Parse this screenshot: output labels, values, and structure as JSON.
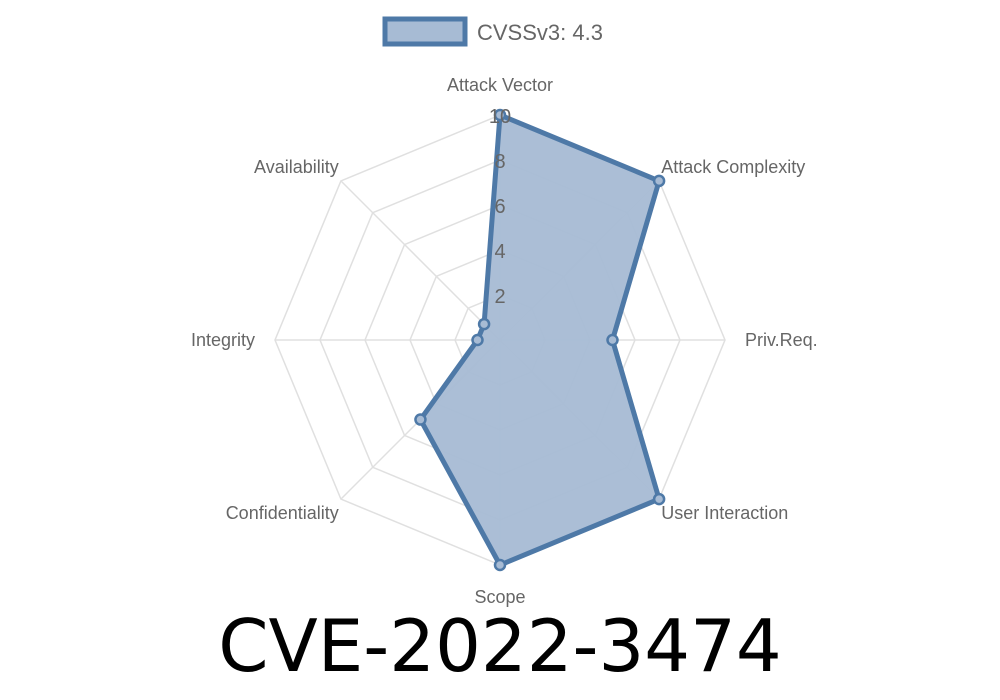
{
  "chart_data": {
    "type": "radar",
    "categories": [
      "Attack Vector",
      "Attack Complexity",
      "Priv.Req.",
      "User Interaction",
      "Scope",
      "Confidentiality",
      "Integrity",
      "Availability"
    ],
    "series": [
      {
        "name": "CVSSv3: 4.3",
        "values": [
          10,
          10,
          5,
          10,
          10,
          5,
          1,
          1
        ]
      }
    ],
    "rlim": [
      0,
      10
    ],
    "ticks": [
      "2",
      "4",
      "6",
      "8",
      "10"
    ],
    "tick_values": [
      2,
      4,
      6,
      8,
      10
    ],
    "grid": true,
    "legend": "top",
    "colors": {
      "line": "#4e79a7",
      "fill": "#a7bbd4",
      "grid": "#e0e0e0",
      "text": "#666666"
    }
  },
  "title": "CVE-2022-3474"
}
